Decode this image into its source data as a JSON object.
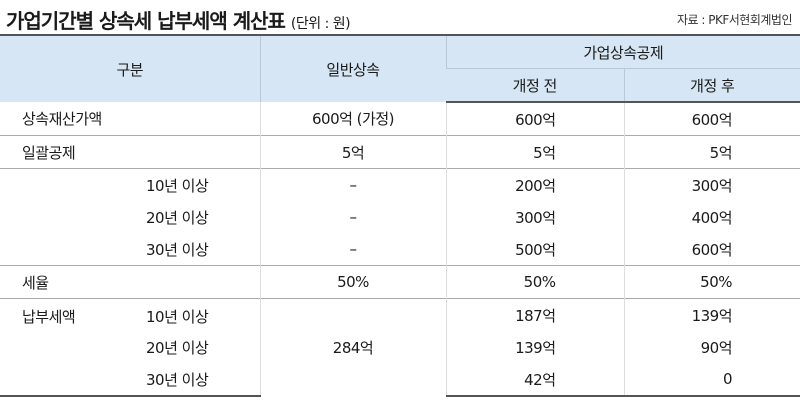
{
  "header": {
    "title": "가업기간별 상속세 납부세액 계산표",
    "unit": "(단위 : 원)",
    "source": "자료 : PKF서현회계법인"
  },
  "columns": {
    "category": "구분",
    "general": "일반상속",
    "business_group": "가업상속공제",
    "before": "개정 전",
    "after": "개정 후"
  },
  "rows": [
    {
      "label": "상속재산가액",
      "general": "600억 (가정)",
      "before": "600억",
      "after": "600억"
    },
    {
      "label": "일괄공제",
      "general": "5억",
      "before": "5억",
      "after": "5억"
    },
    {
      "sublabel": "10년 이상",
      "general": "–",
      "before": "200억",
      "after": "300억"
    },
    {
      "sublabel": "20년 이상",
      "general": "–",
      "before": "300억",
      "after": "400억"
    },
    {
      "sublabel": "30년 이상",
      "general": "–",
      "before": "500억",
      "after": "600억"
    },
    {
      "label": "세율",
      "general": "50%",
      "before": "50%",
      "after": "50%"
    },
    {
      "label": "납부세액",
      "sublabel": "10년 이상",
      "general": "284억",
      "before": "187억",
      "after": "139억"
    },
    {
      "sublabel": "20년 이상",
      "before": "139억",
      "after": "90억"
    },
    {
      "sublabel": "30년 이상",
      "before": "42억",
      "after": "0"
    }
  ]
}
